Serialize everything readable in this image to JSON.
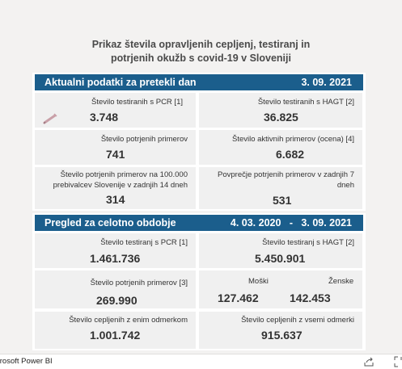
{
  "report": {
    "title_line1": "Prikaz števila opravljenih cepljenj, testiranj in",
    "title_line2": "potrjenih okužb s covid-19 v Sloveniji"
  },
  "section_daily": {
    "header": "Aktualni podatki za pretekli dan",
    "date": "3. 09. 2021",
    "pcr_label": "Število testiranih s PCR [1]",
    "pcr_value": "3.748",
    "hagt_label": "Število testiranih s HAGT [2]",
    "hagt_value": "36.825",
    "confirmed_label": "Število potrjenih primerov",
    "confirmed_value": "741",
    "active_label": "Število aktivnih primerov (ocena) [4]",
    "active_value": "6.682",
    "per100k_label_line1": "Število potrjenih primerov na 100.000",
    "per100k_label_line2": "prebivalcev Slovenije v zadnjih 14 dneh",
    "per100k_value": "314",
    "avg7_label_line1": "Povprečje potrjenih primerov v zadnjih 7",
    "avg7_label_line2": "dneh",
    "avg7_value": "531"
  },
  "section_total": {
    "header": "Pregled za celotno obdobje",
    "date_range": "4. 03. 2020   -   3. 09. 2021",
    "pcr_label": "Število testiranj s PCR [1]",
    "pcr_value": "1.461.736",
    "hagt_label": "Število testiranj s HAGT [2]",
    "hagt_value": "5.450.901",
    "confirmed_label": "Število potrjenih primerov [3]",
    "confirmed_value": "269.990",
    "male_label": "Moški",
    "male_value": "127.462",
    "female_label": "Ženske",
    "female_value": "142.453",
    "one_dose_label": "Število cepljenih z enim odmerkom",
    "one_dose_value": "1.001.742",
    "all_doses_label": "Število cepljenih z vsemi odmerki",
    "all_doses_value": "915.637"
  },
  "footer": {
    "brand": "crosoft Power BI"
  },
  "colors": {
    "header_bg": "#1b5e8c",
    "cell_bg": "#f0f0f0",
    "page_bg": "#f3f2f1"
  },
  "icons": {
    "syringe": "syringe-icon",
    "share": "share-icon",
    "fullscreen": "fullscreen-icon"
  }
}
